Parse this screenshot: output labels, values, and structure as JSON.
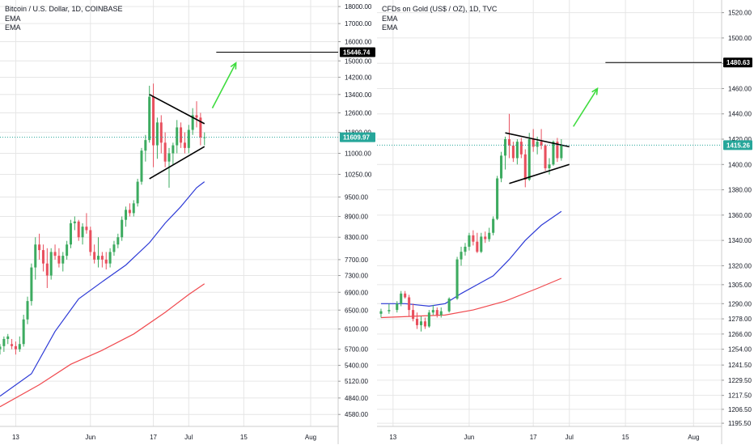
{
  "colors": {
    "up": "#26a69a",
    "up_fill": "#3dab60",
    "down": "#e8505e",
    "ema_short": "#2d3ad6",
    "ema_long": "#f04a4f",
    "trendline": "#000000",
    "arrow": "#3fdc3f",
    "grid": "#e6e6e6",
    "current_btc": "#26a69a",
    "current_gold": "#26a69a",
    "label_dark": "#000000"
  },
  "chart_data": [
    {
      "type": "candlestick",
      "title": "Bitcoin / U.S. Dollar, 1D, COINBASE",
      "legend": [
        "EMA",
        "EMA"
      ],
      "y_scale": "log",
      "ylim": [
        4400,
        18400
      ],
      "y_ticks": [
        "18000.00",
        "17000.00",
        "16000.00",
        "15000.00",
        "14200.00",
        "13400.00",
        "12600.00",
        "11800.00",
        "11000.00",
        "10250.00",
        "9500.00",
        "8900.00",
        "8300.00",
        "7700.00",
        "7300.00",
        "6900.00",
        "6500.00",
        "6100.00",
        "5700.00",
        "5400.00",
        "5120.00",
        "4840.00",
        "4580.00"
      ],
      "x_ticks": [
        "13",
        "Jun",
        "17",
        "Jul",
        "15",
        "Aug"
      ],
      "x_tick_day": [
        0,
        19,
        35,
        44,
        58,
        75
      ],
      "x_range": [
        -4,
        82
      ],
      "level_line": {
        "value": 15446.74,
        "label": "15446.74",
        "start_day": 51
      },
      "current_price": {
        "value": 11609.97,
        "label": "11609.97"
      },
      "candles": [
        [
          -4,
          5700,
          5800,
          5600,
          5750
        ],
        [
          -3,
          5760,
          5950,
          5650,
          5900
        ],
        [
          -2,
          5900,
          6000,
          5800,
          5950
        ],
        [
          -1,
          5800,
          5900,
          5700,
          5760
        ],
        [
          0,
          5760,
          5850,
          5600,
          5700
        ],
        [
          1,
          5700,
          5950,
          5650,
          5800
        ],
        [
          2,
          5800,
          6400,
          5750,
          6300
        ],
        [
          3,
          6300,
          6800,
          6200,
          6700
        ],
        [
          4,
          6700,
          7600,
          6600,
          7500
        ],
        [
          5,
          7500,
          8300,
          7200,
          8100
        ],
        [
          6,
          8100,
          8400,
          7700,
          7950
        ],
        [
          7,
          7950,
          8100,
          7400,
          7600
        ],
        [
          8,
          7600,
          8000,
          7000,
          7300
        ],
        [
          9,
          7300,
          8000,
          7200,
          7900
        ],
        [
          10,
          7900,
          8100,
          7700,
          7800
        ],
        [
          11,
          7800,
          8000,
          7500,
          7600
        ],
        [
          12,
          7600,
          7900,
          7400,
          7800
        ],
        [
          13,
          7800,
          8200,
          7700,
          8100
        ],
        [
          14,
          8100,
          8800,
          8000,
          8700
        ],
        [
          15,
          8700,
          8900,
          8500,
          8750
        ],
        [
          16,
          8750,
          8800,
          8200,
          8300
        ],
        [
          17,
          8300,
          8700,
          8100,
          8600
        ],
        [
          18,
          8600,
          9000,
          8400,
          8500
        ],
        [
          19,
          8500,
          8600,
          7800,
          7900
        ],
        [
          20,
          7900,
          8100,
          7600,
          7700
        ],
        [
          21,
          7700,
          8300,
          7500,
          7800
        ],
        [
          22,
          7800,
          7900,
          7500,
          7700
        ],
        [
          23,
          7700,
          7900,
          7450,
          7600
        ],
        [
          24,
          7600,
          8000,
          7500,
          7900
        ],
        [
          25,
          7900,
          8200,
          7800,
          8100
        ],
        [
          26,
          8100,
          8400,
          8000,
          8300
        ],
        [
          27,
          8300,
          8900,
          8200,
          8800
        ],
        [
          28,
          8800,
          9200,
          8600,
          9100
        ],
        [
          29,
          9100,
          9300,
          8900,
          9000
        ],
        [
          30,
          9000,
          9400,
          8900,
          9300
        ],
        [
          31,
          9300,
          10100,
          9200,
          10000
        ],
        [
          32,
          10000,
          11200,
          9900,
          11100
        ],
        [
          33,
          11100,
          11700,
          10700,
          11500
        ],
        [
          34,
          11500,
          13800,
          11400,
          13300
        ],
        [
          35,
          13300,
          13900,
          10500,
          11300
        ],
        [
          36,
          11300,
          12400,
          10800,
          12200
        ],
        [
          37,
          12200,
          12500,
          11000,
          11400
        ],
        [
          38,
          11400,
          11800,
          10500,
          10700
        ],
        [
          39,
          10700,
          11200,
          9800,
          11000
        ],
        [
          40,
          11000,
          11400,
          10600,
          11300
        ],
        [
          41,
          11300,
          12300,
          11000,
          12000
        ],
        [
          42,
          12000,
          12200,
          11200,
          11400
        ],
        [
          43,
          11400,
          11800,
          11000,
          11200
        ],
        [
          44,
          11200,
          12100,
          11000,
          11900
        ],
        [
          45,
          11900,
          12800,
          11700,
          12500
        ],
        [
          46,
          12500,
          13100,
          12000,
          12400
        ],
        [
          47,
          12400,
          12600,
          11300,
          11600
        ],
        [
          48,
          11600,
          11800,
          11300,
          11610
        ]
      ],
      "ema_short": [
        [
          -4,
          4870
        ],
        [
          4,
          5250
        ],
        [
          10,
          6050
        ],
        [
          16,
          6750
        ],
        [
          22,
          7150
        ],
        [
          28,
          7560
        ],
        [
          34,
          8150
        ],
        [
          38,
          8700
        ],
        [
          42,
          9200
        ],
        [
          46,
          9800
        ],
        [
          48,
          10000
        ]
      ],
      "ema_long": [
        [
          -4,
          4700
        ],
        [
          6,
          5060
        ],
        [
          14,
          5420
        ],
        [
          22,
          5680
        ],
        [
          30,
          6000
        ],
        [
          38,
          6450
        ],
        [
          44,
          6850
        ],
        [
          48,
          7100
        ]
      ],
      "trendlines": [
        [
          [
            34,
            13400
          ],
          [
            48,
            12150
          ]
        ],
        [
          [
            34,
            10100
          ],
          [
            48,
            11250
          ]
        ]
      ],
      "arrow": [
        [
          50,
          12800
        ],
        [
          56,
          14900
        ]
      ]
    },
    {
      "type": "candlestick",
      "title": "CFDs on Gold (US$ / OZ), 1D, TVC",
      "legend": [
        "EMA",
        "EMA"
      ],
      "y_scale": "linear",
      "ylim": [
        1193,
        1530
      ],
      "y_ticks": [
        "1520.00",
        "1500.00",
        "1480.00",
        "1460.00",
        "1440.00",
        "1420.00",
        "1400.00",
        "1380.00",
        "1360.00",
        "1340.00",
        "1320.00",
        "1305.00",
        "1290.00",
        "1278.00",
        "1266.00",
        "1254.00",
        "1241.50",
        "1229.50",
        "1217.50",
        "1206.50",
        "1195.50"
      ],
      "x_ticks": [
        "13",
        "Jun",
        "17",
        "Jul",
        "15",
        "Aug"
      ],
      "x_tick_day": [
        0,
        19,
        35,
        44,
        58,
        75
      ],
      "x_range": [
        -4,
        82
      ],
      "level_line": {
        "value": 1480.63,
        "label": "1480.63",
        "start_day": 53
      },
      "current_price": {
        "value": 1415.26,
        "label": "1415.26"
      },
      "candles": [
        [
          -3,
          1282,
          1286,
          1279,
          1284
        ],
        [
          -1,
          1284,
          1290,
          1282,
          1285
        ],
        [
          1,
          1285,
          1292,
          1283,
          1290
        ],
        [
          2,
          1290,
          1300,
          1288,
          1298
        ],
        [
          3,
          1298,
          1300,
          1294,
          1295
        ],
        [
          4,
          1295,
          1297,
          1280,
          1285
        ],
        [
          5,
          1285,
          1290,
          1276,
          1278
        ],
        [
          6,
          1278,
          1283,
          1270,
          1273
        ],
        [
          7,
          1273,
          1280,
          1268,
          1276
        ],
        [
          8,
          1276,
          1279,
          1270,
          1272
        ],
        [
          9,
          1272,
          1285,
          1271,
          1283
        ],
        [
          10,
          1283,
          1289,
          1281,
          1285
        ],
        [
          11,
          1285,
          1287,
          1279,
          1281
        ],
        [
          12,
          1281,
          1287,
          1279,
          1284
        ],
        [
          14,
          1284,
          1295,
          1283,
          1294
        ],
        [
          16,
          1294,
          1327,
          1293,
          1325
        ],
        [
          17,
          1325,
          1335,
          1320,
          1331
        ],
        [
          18,
          1331,
          1338,
          1328,
          1335
        ],
        [
          19,
          1335,
          1346,
          1332,
          1344
        ],
        [
          20,
          1344,
          1348,
          1336,
          1339
        ],
        [
          21,
          1339,
          1346,
          1330,
          1331
        ],
        [
          22,
          1331,
          1346,
          1330,
          1343
        ],
        [
          23,
          1343,
          1347,
          1338,
          1341
        ],
        [
          24,
          1341,
          1350,
          1339,
          1346
        ],
        [
          25,
          1346,
          1359,
          1344,
          1357
        ],
        [
          26,
          1357,
          1391,
          1356,
          1389
        ],
        [
          27,
          1389,
          1410,
          1386,
          1407
        ],
        [
          28,
          1407,
          1422,
          1396,
          1420
        ],
        [
          29,
          1420,
          1440,
          1405,
          1415
        ],
        [
          30,
          1415,
          1418,
          1402,
          1405
        ],
        [
          31,
          1405,
          1420,
          1400,
          1418
        ],
        [
          32,
          1418,
          1421,
          1405,
          1408
        ],
        [
          33,
          1408,
          1412,
          1382,
          1388
        ],
        [
          34,
          1388,
          1425,
          1387,
          1420
        ],
        [
          35,
          1420,
          1428,
          1410,
          1414
        ],
        [
          36,
          1414,
          1422,
          1408,
          1418
        ],
        [
          37,
          1418,
          1428,
          1412,
          1415
        ],
        [
          38,
          1415,
          1416,
          1395,
          1397
        ],
        [
          39,
          1397,
          1405,
          1392,
          1400
        ],
        [
          40,
          1400,
          1419,
          1399,
          1418
        ],
        [
          41,
          1418,
          1421,
          1402,
          1405
        ],
        [
          42,
          1405,
          1420,
          1403,
          1415
        ]
      ],
      "ema_short": [
        [
          -3,
          1290
        ],
        [
          3,
          1290
        ],
        [
          9,
          1288
        ],
        [
          13,
          1290
        ],
        [
          17,
          1298
        ],
        [
          21,
          1305
        ],
        [
          25,
          1312
        ],
        [
          29,
          1325
        ],
        [
          33,
          1340
        ],
        [
          37,
          1352
        ],
        [
          42,
          1363
        ]
      ],
      "ema_long": [
        [
          -3,
          1279
        ],
        [
          5,
          1280
        ],
        [
          13,
          1281
        ],
        [
          20,
          1285
        ],
        [
          28,
          1292
        ],
        [
          36,
          1302
        ],
        [
          42,
          1310
        ]
      ],
      "trendlines": [
        [
          [
            28,
            1425
          ],
          [
            44,
            1414
          ]
        ],
        [
          [
            29,
            1385
          ],
          [
            44,
            1400
          ]
        ]
      ],
      "arrow": [
        [
          45,
          1430
        ],
        [
          51,
          1460
        ]
      ]
    }
  ]
}
